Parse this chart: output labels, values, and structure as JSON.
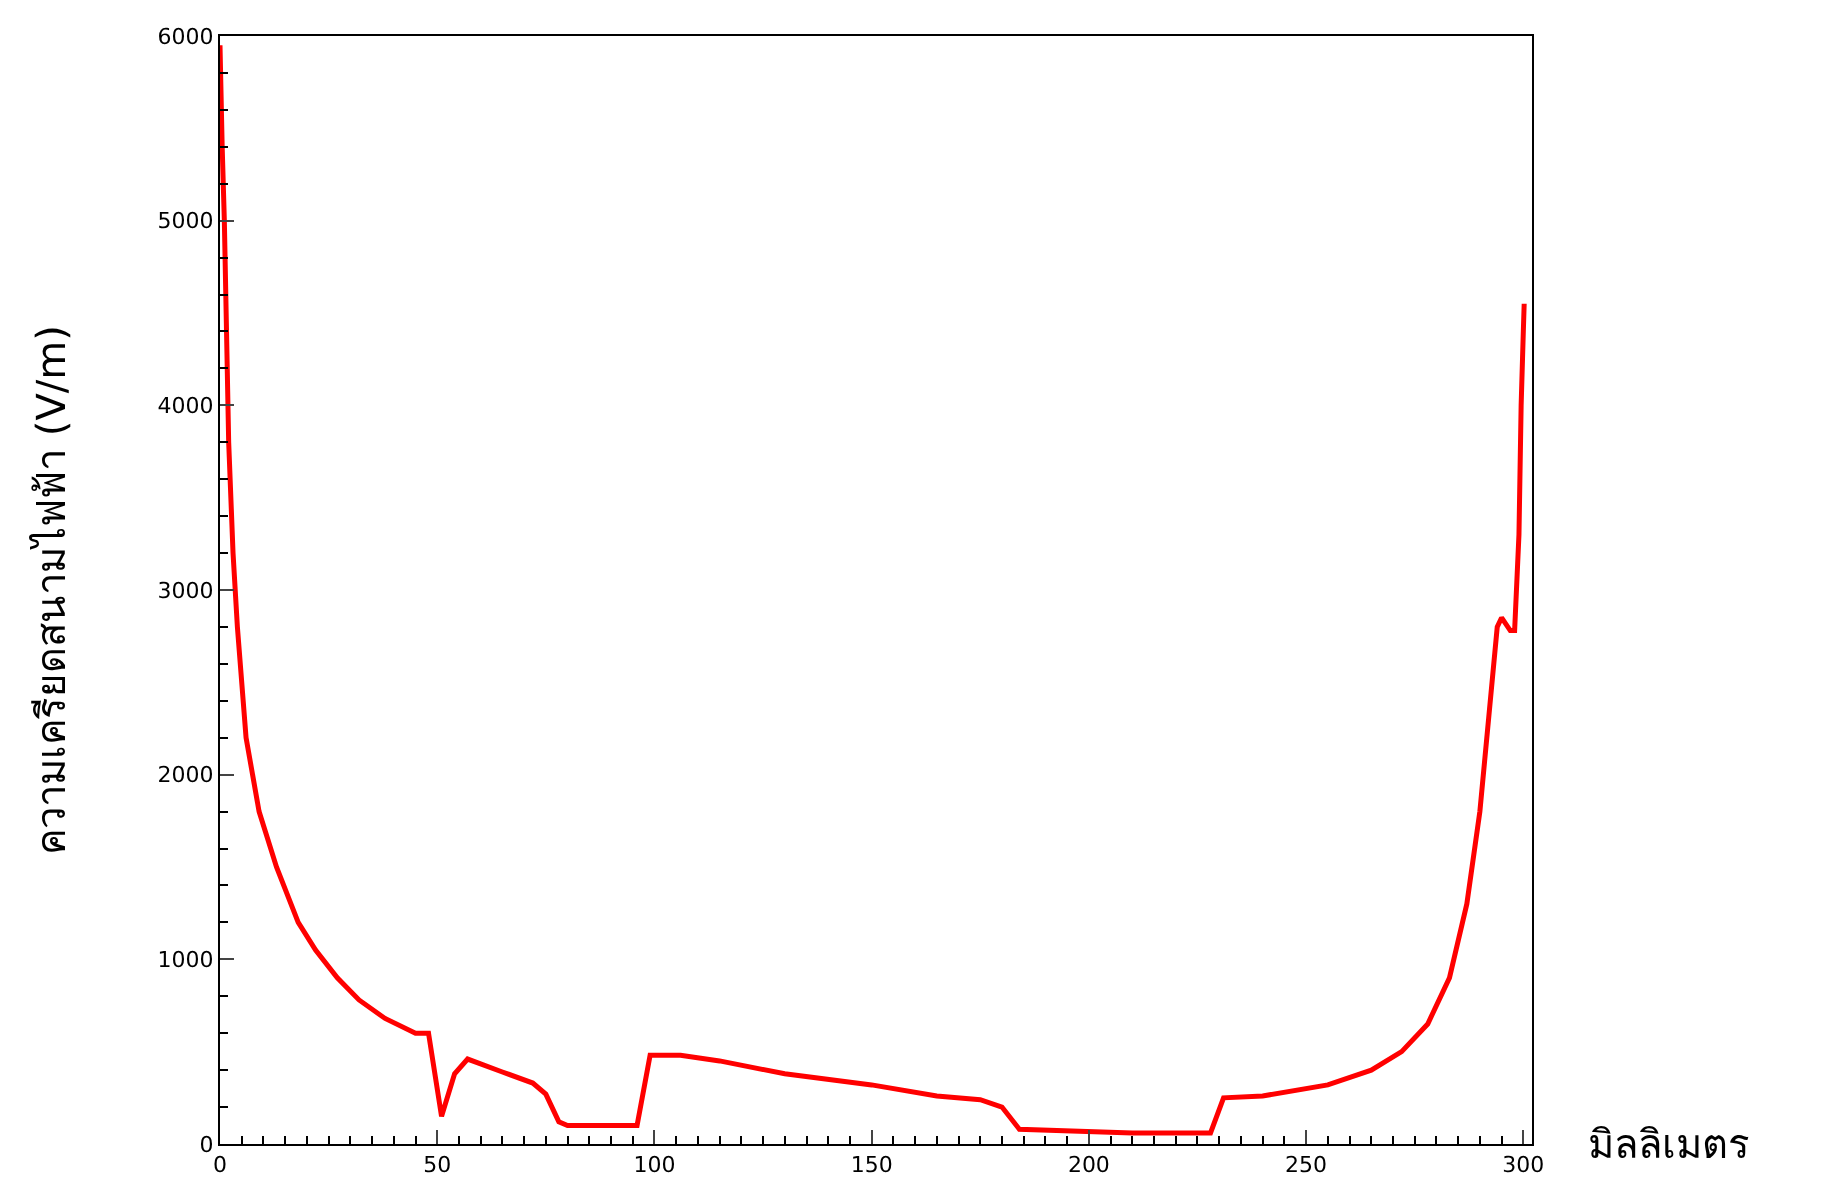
{
  "chart_data": {
    "type": "line",
    "xlabel": "มิลลิเมตร",
    "ylabel": "ความเครียดสนามไฟฟ้า (V/m)",
    "xlim": [
      0,
      302
    ],
    "xticks": [
      0,
      50,
      100,
      150,
      200,
      250,
      300
    ],
    "ylim": [
      0,
      6000
    ],
    "yticks": [
      0,
      1000,
      2000,
      3000,
      4000,
      5000,
      6000
    ],
    "marker": "none",
    "line_style": "solid",
    "series": [
      {
        "color": "#ff0000",
        "x": [
          0,
          0.5,
          1,
          1.5,
          2,
          3,
          4,
          6,
          9,
          13,
          18,
          22,
          27,
          32,
          38,
          45,
          48,
          51,
          54,
          57,
          65,
          72,
          75,
          78,
          80,
          96,
          99,
          106,
          115,
          130,
          150,
          165,
          175,
          180,
          184,
          210,
          228,
          231,
          240,
          255,
          265,
          272,
          278,
          283,
          287,
          290,
          292,
          294,
          295,
          297,
          298,
          299,
          299.5,
          300,
          300.2
        ],
        "values": [
          5950,
          5400,
          5000,
          4400,
          3800,
          3200,
          2800,
          2200,
          1800,
          1500,
          1200,
          1050,
          900,
          780,
          680,
          600,
          600,
          150,
          380,
          460,
          390,
          330,
          270,
          120,
          100,
          100,
          480,
          480,
          450,
          380,
          320,
          260,
          240,
          200,
          80,
          60,
          60,
          250,
          260,
          320,
          400,
          500,
          650,
          900,
          1300,
          1800,
          2300,
          2800,
          2850,
          2780,
          2780,
          3300,
          4000,
          4400,
          4550
        ]
      }
    ]
  }
}
